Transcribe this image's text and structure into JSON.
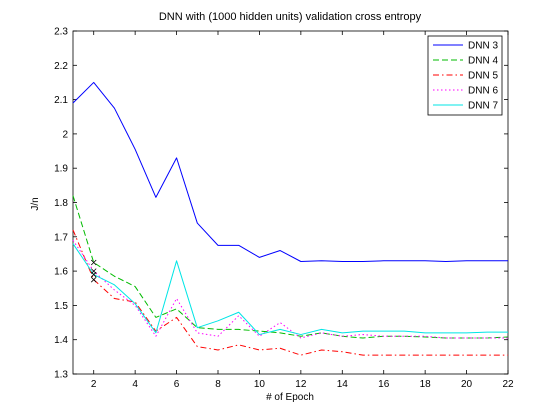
{
  "chart_data": {
    "type": "line",
    "title": "DNN with (1000 hidden units) validation cross entropy",
    "xlabel": "# of Epoch",
    "ylabel": "J/n",
    "xlim": [
      1,
      22
    ],
    "ylim": [
      1.3,
      2.3
    ],
    "xticks": [
      2,
      4,
      6,
      8,
      10,
      12,
      14,
      16,
      18,
      20,
      22
    ],
    "yticks": [
      1.3,
      1.4,
      1.5,
      1.6,
      1.7,
      1.8,
      1.9,
      2,
      2.1,
      2.2,
      2.3
    ],
    "grid": false,
    "legend_position": "top-right",
    "x": [
      1,
      2,
      3,
      4,
      5,
      6,
      7,
      8,
      9,
      10,
      11,
      12,
      13,
      14,
      15,
      16,
      17,
      18,
      19,
      20,
      21,
      22
    ],
    "series": [
      {
        "name": "DNN 3",
        "color": "#0000ff",
        "style": "solid",
        "values": [
          2.09,
          2.15,
          2.075,
          1.955,
          1.815,
          1.93,
          1.74,
          1.675,
          1.675,
          1.64,
          1.66,
          1.628,
          1.63,
          1.628,
          1.628,
          1.63,
          1.63,
          1.63,
          1.628,
          1.63,
          1.63,
          1.63
        ]
      },
      {
        "name": "DNN 4",
        "color": "#00bb00",
        "style": "dashed",
        "values": [
          1.82,
          1.625,
          1.585,
          1.555,
          1.465,
          1.49,
          1.435,
          1.43,
          1.43,
          1.425,
          1.42,
          1.41,
          1.42,
          1.41,
          1.405,
          1.41,
          1.41,
          1.408,
          1.405,
          1.405,
          1.405,
          1.408
        ]
      },
      {
        "name": "DNN 5",
        "color": "#ff0000",
        "style": "dashdot",
        "values": [
          1.72,
          1.575,
          1.52,
          1.51,
          1.425,
          1.465,
          1.38,
          1.37,
          1.385,
          1.37,
          1.375,
          1.355,
          1.37,
          1.365,
          1.355,
          1.355,
          1.355,
          1.355,
          1.355,
          1.355,
          1.355,
          1.355
        ]
      },
      {
        "name": "DNN 6",
        "color": "#ff00ff",
        "style": "dotted",
        "values": [
          1.69,
          1.6,
          1.545,
          1.5,
          1.41,
          1.52,
          1.42,
          1.41,
          1.47,
          1.41,
          1.45,
          1.405,
          1.42,
          1.41,
          1.415,
          1.41,
          1.41,
          1.41,
          1.405,
          1.405,
          1.405,
          1.405
        ]
      },
      {
        "name": "DNN 7",
        "color": "#00e5e5",
        "style": "solid",
        "values": [
          1.68,
          1.59,
          1.56,
          1.505,
          1.42,
          1.63,
          1.435,
          1.455,
          1.48,
          1.415,
          1.43,
          1.415,
          1.43,
          1.42,
          1.425,
          1.425,
          1.425,
          1.42,
          1.42,
          1.42,
          1.422,
          1.422
        ]
      }
    ],
    "annotations": [
      {
        "type": "x-marker",
        "x": 2,
        "y": 1.625
      },
      {
        "type": "x-marker",
        "x": 2,
        "y": 1.6
      },
      {
        "type": "x-marker",
        "x": 2,
        "y": 1.59
      },
      {
        "type": "x-marker",
        "x": 2,
        "y": 1.575
      }
    ]
  }
}
